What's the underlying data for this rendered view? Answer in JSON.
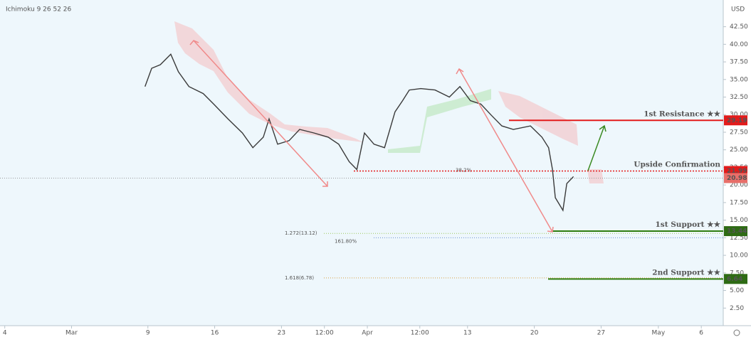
{
  "chart_data": {
    "type": "line",
    "indicator": "Ichimoku 9 26 52 26",
    "currency": "USD",
    "x": [
      7.7,
      8.4,
      9.3,
      10.4,
      11.2,
      12.3,
      13.8,
      14.9,
      16.4,
      17.9,
      19.0,
      20.1,
      20.7,
      21.6,
      22.8,
      23.9,
      25.4,
      26.9,
      28.0,
      29.1,
      29.9,
      30.7,
      31.7,
      32.8,
      33.9,
      34.7,
      35.4,
      36.6,
      38.1,
      39.6,
      40.7,
      41.8,
      42.9,
      44.0,
      45.1,
      46.3,
      48.1,
      49.3,
      50.0,
      50.4,
      50.7,
      51.5,
      51.9,
      52.6
    ],
    "values": [
      34.0,
      36.6,
      37.1,
      38.6,
      36.1,
      34.0,
      33.0,
      31.5,
      29.4,
      27.4,
      25.3,
      26.8,
      29.4,
      25.8,
      26.3,
      27.9,
      27.4,
      26.8,
      25.8,
      23.3,
      22.2,
      27.4,
      25.8,
      25.3,
      30.4,
      32.0,
      33.5,
      33.7,
      33.5,
      32.5,
      34.0,
      32.0,
      31.5,
      29.9,
      28.4,
      27.9,
      28.4,
      26.8,
      25.3,
      22.2,
      18.2,
      16.4,
      20.2,
      21.2
    ],
    "color": "#3a3a3a",
    "xlim": [
      -7.5,
      68.3
    ],
    "ylim": [
      0,
      46.3
    ],
    "xticks": [
      {
        "value": -7,
        "label": "4"
      },
      {
        "value": 0,
        "label": "Mar"
      },
      {
        "value": 8,
        "label": "9"
      },
      {
        "value": 15,
        "label": "16"
      },
      {
        "value": 22,
        "label": "23"
      },
      {
        "value": 26.5,
        "label": "12:00"
      },
      {
        "value": 31,
        "label": "Apr"
      },
      {
        "value": 36.5,
        "label": "12:00"
      },
      {
        "value": 41.5,
        "label": "13"
      },
      {
        "value": 48.5,
        "label": "20"
      },
      {
        "value": 55.5,
        "label": "27"
      },
      {
        "value": 61.5,
        "label": "May"
      },
      {
        "value": 66,
        "label": "6"
      }
    ],
    "yticks": [
      {
        "value": 2.5,
        "label": "2.50"
      },
      {
        "value": 5,
        "label": "5.00"
      },
      {
        "value": 7.5,
        "label": "7.50"
      },
      {
        "value": 10,
        "label": "10.00"
      },
      {
        "value": 12.5,
        "label": "12.50"
      },
      {
        "value": 15,
        "label": "15.00"
      },
      {
        "value": 17.5,
        "label": "17.50"
      },
      {
        "value": 20,
        "label": "20.00"
      },
      {
        "value": 22.5,
        "label": "22.50"
      },
      {
        "value": 25,
        "label": "25.00"
      },
      {
        "value": 27.5,
        "label": "27.50"
      },
      {
        "value": 30,
        "label": "30.00"
      },
      {
        "value": 32.5,
        "label": "32.50"
      },
      {
        "value": 35,
        "label": "35.00"
      },
      {
        "value": 37.5,
        "label": "37.50"
      },
      {
        "value": 40,
        "label": "40.00"
      },
      {
        "value": 42.5,
        "label": "42.50"
      }
    ],
    "levels": [
      {
        "name": "1st Resistance ★★",
        "value": 29.19,
        "color": "#e31b1b"
      },
      {
        "name": "Upside Confirmation",
        "value": 21.99,
        "color": "#e31b1b"
      },
      {
        "name": "1st Support ★★",
        "value": 13.44,
        "color": "#2e7d0e"
      },
      {
        "name": "2nd Support ★★",
        "value": 6.64,
        "color": "#2e7d0e"
      }
    ],
    "last_price": 20.98,
    "fib": [
      {
        "label": "1.272(13.12)",
        "value": 13.12,
        "color": "#9cc85a"
      },
      {
        "label": "161.80%",
        "value": 12.5,
        "color": "#6a8fd0"
      },
      {
        "label": "1.618(6.78)",
        "value": 6.78,
        "color": "#d7a040"
      },
      {
        "label": "38.2%",
        "value": 21.99,
        "color": "#6a8fd0"
      }
    ]
  }
}
